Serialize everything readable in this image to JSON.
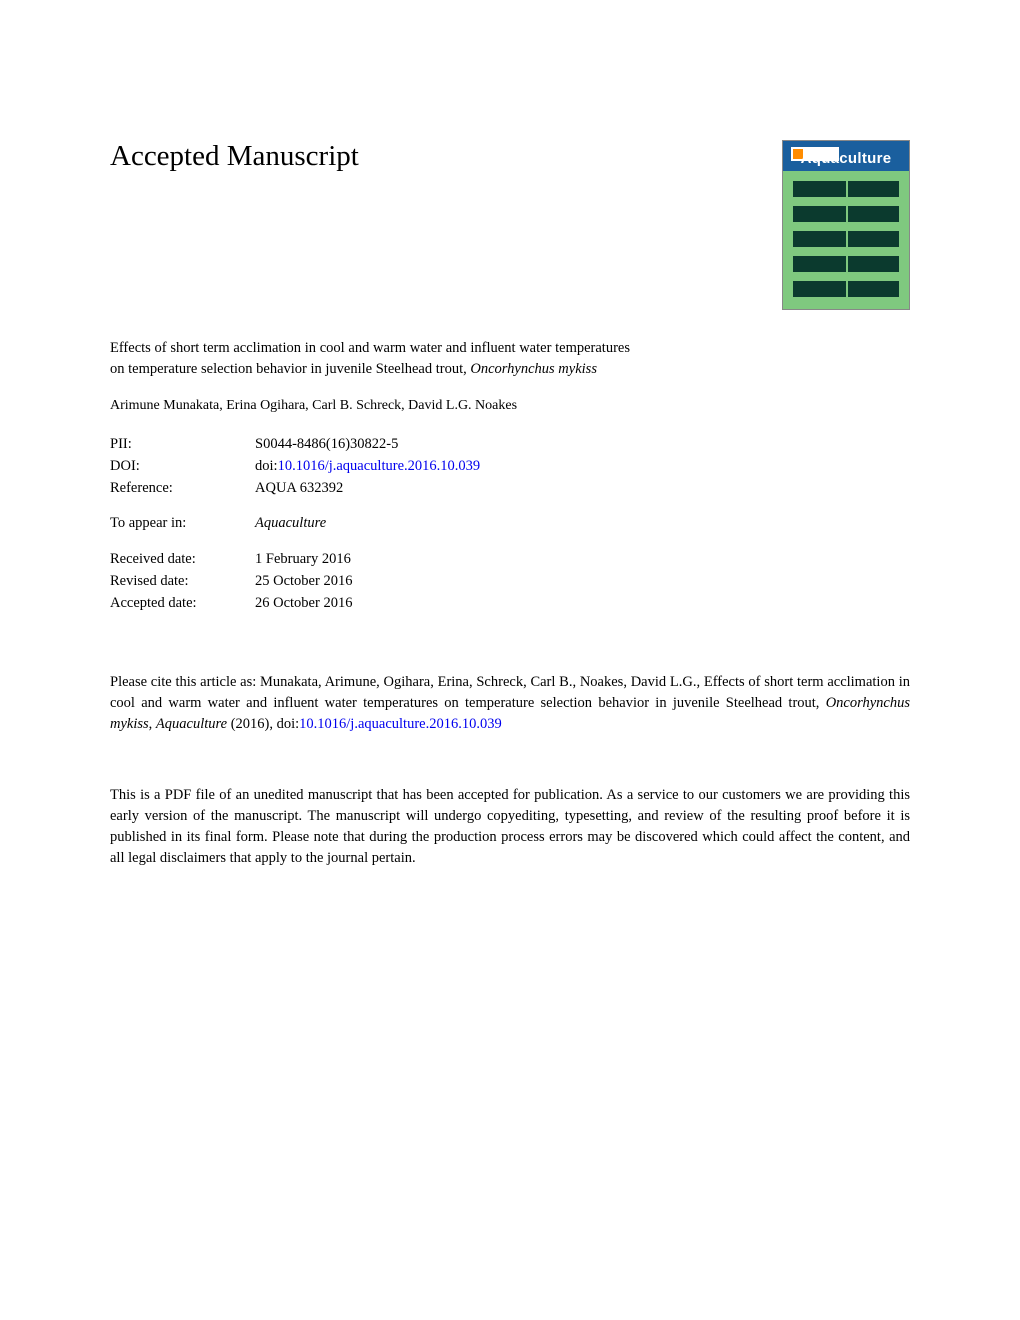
{
  "heading": "Accepted Manuscript",
  "journal_cover": {
    "name": "Aquaculture",
    "bg_top": "#1a5f9e",
    "bg_bottom": "#7fc97f",
    "pattern_color": "#0b3a2e"
  },
  "article": {
    "title_prefix": "Effects of short term acclimation in cool and warm water and influent water temperatures on temperature selection behavior in juvenile Steelhead trout, ",
    "title_species": "Oncorhynchus mykiss"
  },
  "authors": "Arimune Munakata, Erina Ogihara, Carl B. Schreck, David L.G. Noakes",
  "meta": {
    "pii_label": "PII:",
    "pii_value": "S0044-8486(16)30822-5",
    "doi_label": "DOI:",
    "doi_prefix": "doi:",
    "doi_link": "10.1016/j.aquaculture.2016.10.039",
    "ref_label": "Reference:",
    "ref_value": "AQUA 632392",
    "appear_label": "To appear in:",
    "appear_value": "Aquaculture",
    "received_label": "Received date:",
    "received_value": "1 February 2016",
    "revised_label": "Revised date:",
    "revised_value": "25 October 2016",
    "accepted_label": "Accepted date:",
    "accepted_value": "26 October 2016"
  },
  "citation": {
    "prefix": "Please cite this article as: Munakata, Arimune, Ogihara, Erina, Schreck, Carl B., Noakes, David L.G., Effects of short term acclimation in cool and warm water and influent water temperatures on temperature selection behavior in juvenile Steelhead trout, ",
    "species": "Oncorhynchus mykiss",
    "mid": ", ",
    "journal": "Aquaculture",
    "year": " (2016),  doi:",
    "link": "10.1016/j.aquaculture.2016.10.039"
  },
  "disclaimer": "This is a PDF file of an unedited manuscript that has been accepted for publication. As a service to our customers we are providing this early version of the manuscript. The manuscript will undergo copyediting, typesetting, and review of the resulting proof before it is published in its final form. Please note that during the production process errors may be discovered which could affect the content, and all legal disclaimers that apply to the journal pertain."
}
